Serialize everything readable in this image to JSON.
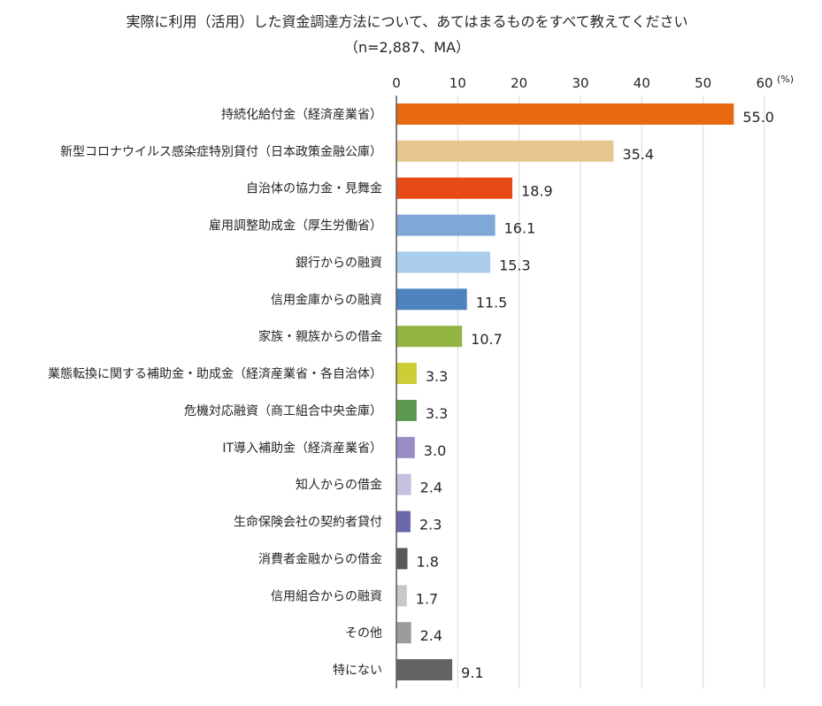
{
  "chart_data": {
    "type": "bar",
    "orientation": "horizontal",
    "title": "実際に利用（活用）した資金調達方法について、あてはまるものをすべて教えてください",
    "subtitle": "（n=2,887、MA）",
    "unit": "(%)",
    "xlim": [
      0,
      60
    ],
    "ticks": [
      "0",
      "10",
      "20",
      "30",
      "40",
      "50",
      "60"
    ],
    "tick_values": [
      0,
      10,
      20,
      30,
      40,
      50,
      60
    ],
    "grid": true,
    "legend": "none",
    "categories": [
      "持続化給付金（経済産業省）",
      "新型コロナウイルス感染症特別貸付（日本政策金融公庫）",
      "自治体の協力金・見舞金",
      "雇用調整助成金（厚生労働省）",
      "銀行からの融資",
      "信用金庫からの融資",
      "家族・親族からの借金",
      "業態転換に関する補助金・助成金（経済産業省・各自治体）",
      "危機対応融資（商工組合中央金庫）",
      "IT導入補助金（経済産業省）",
      "知人からの借金",
      "生命保険会社の契約者貸付",
      "消費者金融からの借金",
      "信用組合からの融資",
      "その他",
      "特にない"
    ],
    "values": [
      55.0,
      35.4,
      18.9,
      16.1,
      15.3,
      11.5,
      10.7,
      3.3,
      3.3,
      3.0,
      2.4,
      2.3,
      1.8,
      1.7,
      2.4,
      9.1
    ],
    "value_labels": [
      "55.0",
      "35.4",
      "18.9",
      "16.1",
      "15.3",
      "11.5",
      "10.7",
      "3.3",
      "3.3",
      "3.0",
      "2.4",
      "2.3",
      "1.8",
      "1.7",
      "2.4",
      "9.1"
    ],
    "colors": [
      "#E8680F",
      "#E8C690",
      "#E84A17",
      "#7FA8D6",
      "#A9CCEA",
      "#4F83BE",
      "#92B440",
      "#CACD36",
      "#5C9950",
      "#9A8DC6",
      "#C6C1DF",
      "#6A68AC",
      "#595959",
      "#C8C8C8",
      "#9C9C9C",
      "#636363"
    ]
  }
}
